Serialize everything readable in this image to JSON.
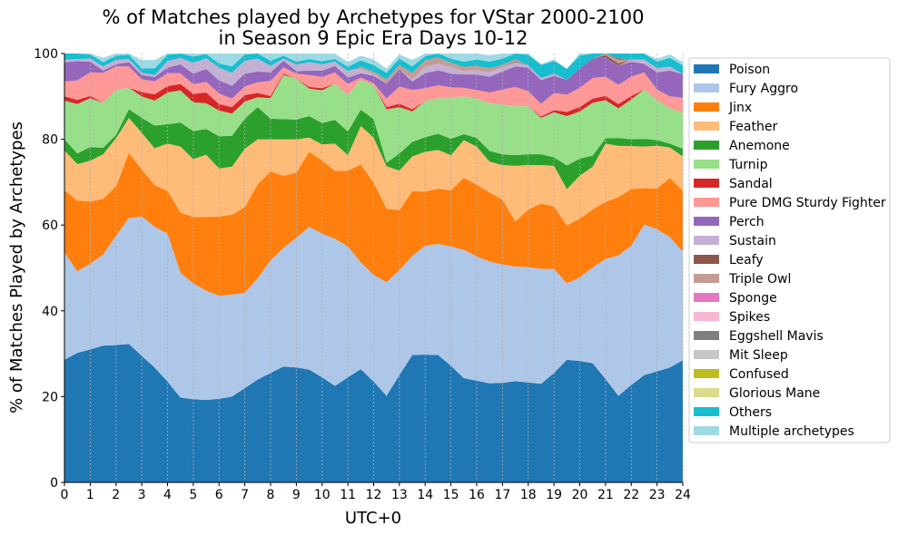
{
  "chart_data": {
    "type": "area",
    "stacked": true,
    "title": [
      "% of Matches played by Archetypes for VStar 2000-2100",
      "in Season 9 Epic Era Days 10-12"
    ],
    "xlabel": "UTC+0",
    "ylabel": "% of Matches Played by Archetypes",
    "xlim": [
      0,
      24
    ],
    "ylim": [
      0,
      100
    ],
    "x_ticks": [
      "0",
      "1",
      "2",
      "3",
      "4",
      "5",
      "6",
      "7",
      "8",
      "9",
      "10",
      "11",
      "12",
      "13",
      "14",
      "15",
      "16",
      "17",
      "18",
      "19",
      "20",
      "21",
      "22",
      "23",
      "24"
    ],
    "y_ticks": [
      "0",
      "20",
      "40",
      "60",
      "80",
      "100"
    ],
    "grid": "vertical-dotted",
    "legend_position": "right",
    "x": [
      0,
      0.5,
      1,
      1.5,
      2,
      2.5,
      3,
      3.5,
      4,
      4.5,
      5,
      5.5,
      6,
      6.5,
      7,
      7.5,
      8,
      8.5,
      9,
      9.5,
      10,
      10.5,
      11,
      11.5,
      12,
      12.5,
      13,
      13.5,
      14,
      14.5,
      15,
      15.5,
      16,
      16.5,
      17,
      17.5,
      18,
      18.5,
      19,
      19.5,
      20,
      20.5,
      21,
      21.5,
      22,
      22.5,
      23,
      23.5,
      24
    ],
    "series": [
      {
        "name": "Poison",
        "color": "#1f77b4",
        "values": [
          28.6,
          30.2,
          31,
          31.9,
          32,
          32.3,
          29.5,
          26.8,
          23.5,
          19.8,
          19.4,
          19.2,
          19.5,
          20,
          22,
          24,
          25.5,
          27,
          26.8,
          26.3,
          24.5,
          22.5,
          24.5,
          26.4,
          23.5,
          20.2,
          25,
          29.7,
          29.8,
          29.7,
          27.2,
          24.3,
          23.7,
          23.1,
          23.2,
          23.6,
          23.3,
          23,
          25.5,
          28.6,
          28.3,
          27.8,
          24.1,
          20.2,
          22.7,
          25,
          25.9,
          26.8,
          28.5
        ]
      },
      {
        "name": "Fury Aggro",
        "color": "#aec7e8",
        "values": [
          25,
          19,
          20,
          21.2,
          25.5,
          29.3,
          32.5,
          32.8,
          34.5,
          29.1,
          27,
          25.5,
          24,
          23.8,
          22.2,
          23.6,
          26.3,
          27.7,
          30.2,
          33.3,
          33.5,
          34.3,
          30.5,
          24.9,
          24.9,
          26.5,
          24.5,
          23.1,
          25.4,
          25.9,
          27.8,
          29.9,
          29,
          28.4,
          27.6,
          26.7,
          26.9,
          26.8,
          24.3,
          17.8,
          19.5,
          22.3,
          28,
          32.7,
          32.5,
          35.1,
          33.1,
          30.4,
          25.3
        ]
      },
      {
        "name": "Jinx",
        "color": "#ff7f0e",
        "values": [
          14.5,
          16.5,
          14.5,
          13,
          11.5,
          15.2,
          11,
          9.7,
          10,
          14,
          15.5,
          17.2,
          18.5,
          18.6,
          20,
          21.9,
          20.7,
          16.8,
          15.2,
          17.5,
          17,
          15.8,
          17.7,
          22.8,
          21.5,
          17.1,
          14,
          15.1,
          12.6,
          12.9,
          13.1,
          16.8,
          16.7,
          16.1,
          15.1,
          10.5,
          13.4,
          15.2,
          14.5,
          13.5,
          13.7,
          13.5,
          13.3,
          13.6,
          13.2,
          8.5,
          9.5,
          13.8,
          14.2
        ]
      },
      {
        "name": "Feather",
        "color": "#ffbb78",
        "values": [
          9.3,
          8.5,
          9.5,
          10.4,
          11.2,
          8.2,
          8.5,
          8.6,
          11,
          15.4,
          13.5,
          14.5,
          11.2,
          11.2,
          13.6,
          10.5,
          7.5,
          8.5,
          7.8,
          3.3,
          3.8,
          6.4,
          3.6,
          9,
          10.5,
          9.9,
          9.2,
          8.1,
          9.3,
          9,
          8.2,
          8.8,
          8.9,
          7.2,
          8.1,
          13,
          10.4,
          9,
          9.5,
          8.5,
          10,
          10,
          13.6,
          12,
          10,
          9.7,
          10,
          7.1,
          8
        ]
      },
      {
        "name": "Anemone",
        "color": "#2ca02c",
        "values": [
          2.6,
          2.5,
          3.2,
          1.5,
          0.8,
          2,
          3.5,
          5.3,
          4.5,
          5.6,
          6.5,
          6,
          7.5,
          7.2,
          7,
          7.5,
          4.8,
          4.7,
          4.6,
          5,
          5,
          5.5,
          5.5,
          3.8,
          4.3,
          0.8,
          4,
          3.4,
          3.4,
          3.8,
          3.8,
          1.4,
          2,
          2.5,
          2.5,
          2.5,
          2.5,
          2.5,
          2,
          5.5,
          4,
          2.6,
          1.2,
          1.8,
          1.6,
          1.8,
          1.3,
          0.9,
          1.8
        ]
      },
      {
        "name": "Turnip",
        "color": "#98df8a",
        "values": [
          9,
          11.5,
          11.4,
          10.5,
          10.5,
          5,
          5,
          5.8,
          7.4,
          7.5,
          6.7,
          6,
          6,
          5.2,
          4,
          2.3,
          4.8,
          10.3,
          9.5,
          6.4,
          7.6,
          8.5,
          8.5,
          7,
          7.9,
          12.5,
          10.8,
          7.1,
          8.4,
          8.3,
          9.5,
          8.8,
          9.2,
          11.1,
          11.6,
          11.4,
          11.2,
          8.5,
          10.5,
          11.5,
          11,
          12.3,
          8.9,
          6.9,
          9.3,
          11.5,
          9.3,
          8.3,
          8.4
        ]
      },
      {
        "name": "Sandal",
        "color": "#d62728",
        "values": [
          1,
          1,
          0.5,
          0,
          0,
          0,
          1,
          1.5,
          1.5,
          1.5,
          2,
          2.5,
          1.5,
          1.5,
          1.5,
          1,
          0.5,
          0.3,
          0,
          0.4,
          0.5,
          0,
          0,
          0,
          0,
          0.5,
          0.8,
          0.5,
          0,
          0,
          0,
          0,
          0,
          0,
          0,
          0,
          0,
          0.3,
          0.5,
          1,
          1,
          1,
          1,
          1,
          0.8,
          0,
          0,
          0,
          0
        ]
      },
      {
        "name": "Pure DMG Sturdy Fighter",
        "color": "#ff9896",
        "values": [
          3.5,
          4.5,
          5.5,
          7,
          5.5,
          5,
          3,
          3,
          3,
          2.5,
          2.2,
          2.5,
          2.5,
          2,
          2,
          2.5,
          3.5,
          1.5,
          1.2,
          2.8,
          2.6,
          2.6,
          2.6,
          0.5,
          0.5,
          2,
          4,
          4.5,
          3,
          3,
          2.5,
          2,
          2,
          2.5,
          3.5,
          4.5,
          3.5,
          3,
          4,
          4,
          4.5,
          4.8,
          4.5,
          4.5,
          4.5,
          4,
          2.5,
          2.7,
          3.5
        ]
      },
      {
        "name": "Perch",
        "color": "#9467bd",
        "values": [
          4.5,
          4.5,
          2.5,
          0.5,
          0.5,
          1,
          1,
          1,
          1.3,
          2.1,
          2.5,
          3,
          3,
          3,
          3,
          2.5,
          2,
          1.5,
          0.6,
          1,
          1.5,
          1.5,
          1.5,
          1,
          1.7,
          3.5,
          4,
          2,
          3.5,
          3.5,
          3.2,
          3.1,
          3.6,
          3.7,
          4.2,
          4.8,
          5.5,
          5.5,
          4,
          3.5,
          4.5,
          4.5,
          4.5,
          4.5,
          3.5,
          2,
          4,
          6,
          5.5
        ]
      },
      {
        "name": "Sustain",
        "color": "#c5b0d5",
        "values": [
          0.5,
          0.5,
          0.7,
          1,
          1,
          0.7,
          0.5,
          0.5,
          1.5,
          1.5,
          2.5,
          2.5,
          3,
          3,
          3,
          3,
          1.5,
          0.5,
          1.5,
          2,
          1.5,
          1,
          1.5,
          1,
          0.5,
          0,
          0,
          0.5,
          1.5,
          1.5,
          1.5,
          0.8,
          1,
          1,
          1,
          1,
          0.5,
          0.5,
          0.5,
          0,
          0,
          0,
          0,
          0,
          0.5,
          1,
          1,
          1,
          0
        ]
      },
      {
        "name": "Leafy",
        "color": "#8c564b",
        "values": [
          0,
          0,
          0,
          0,
          0,
          0,
          0,
          0,
          0,
          0,
          0,
          0,
          0,
          0,
          0,
          0,
          0,
          0,
          0,
          0,
          0,
          0,
          0,
          0,
          0,
          0,
          0,
          0,
          0,
          0,
          0,
          0,
          0,
          0,
          0,
          0.2,
          0,
          0,
          0,
          0,
          0,
          0,
          0.5,
          0.5,
          0,
          0,
          0,
          0,
          0
        ]
      },
      {
        "name": "Triple Owl",
        "color": "#c49c94",
        "values": [
          0,
          0,
          0,
          0,
          0,
          0,
          0,
          0,
          0,
          0,
          0,
          0,
          0,
          0,
          0,
          0,
          0,
          0,
          0,
          0,
          0,
          0,
          0,
          0.5,
          0.5,
          1,
          1,
          1.5,
          1.5,
          1.5,
          1,
          1,
          1,
          1,
          0.5,
          0.5,
          0,
          0,
          0,
          0,
          0,
          0,
          0.5,
          0.8,
          0,
          0,
          0,
          0,
          0
        ]
      },
      {
        "name": "Sponge",
        "color": "#e377c2",
        "values": [
          0,
          0,
          0,
          0,
          0,
          0,
          0,
          0,
          0,
          0,
          0,
          0,
          0,
          0,
          0,
          0,
          0,
          0,
          0,
          0,
          0,
          0,
          0,
          0,
          0,
          0,
          0,
          0,
          0,
          0,
          0,
          0,
          0,
          0,
          0,
          0,
          0,
          0,
          0,
          0,
          0,
          0,
          0,
          0,
          0,
          0,
          0,
          0,
          0
        ]
      },
      {
        "name": "Spikes",
        "color": "#f7b6d2",
        "values": [
          0,
          0,
          0,
          0,
          0,
          0,
          0,
          0,
          0,
          0,
          0,
          0,
          0,
          0,
          0,
          0,
          0,
          0,
          0,
          0,
          0,
          0,
          0,
          0,
          0,
          0,
          0,
          0,
          0,
          0,
          0,
          0,
          0,
          0,
          0,
          0,
          0,
          0,
          0,
          0,
          0,
          0,
          0,
          0,
          0,
          0,
          0,
          0,
          0
        ]
      },
      {
        "name": "Eggshell Mavis",
        "color": "#7f7f7f",
        "values": [
          0,
          0,
          0,
          0,
          0,
          0,
          0,
          0,
          0,
          0,
          0,
          0,
          0,
          0,
          0,
          0,
          0,
          0,
          0,
          0,
          0,
          0,
          0,
          0,
          0,
          0,
          0,
          0,
          0,
          0,
          0,
          0,
          0,
          0,
          0,
          0,
          0,
          0,
          0,
          0,
          0,
          0,
          0.5,
          0.5,
          0,
          0,
          0,
          0,
          0
        ]
      },
      {
        "name": "Mit Sleep",
        "color": "#c7c7c7",
        "values": [
          0,
          0,
          0,
          0,
          0,
          0,
          0,
          0,
          0,
          0,
          0,
          0,
          0,
          0,
          0,
          0,
          0,
          0,
          0,
          0,
          0,
          0,
          0,
          0,
          0,
          0,
          0,
          0,
          0,
          0,
          0,
          0,
          0,
          0,
          0,
          0,
          0,
          0,
          0,
          0,
          0,
          0,
          0,
          0,
          0,
          0,
          0,
          0,
          0
        ]
      },
      {
        "name": "Confused",
        "color": "#bcbd22",
        "values": [
          0,
          0,
          0,
          0,
          0,
          0,
          0,
          0,
          0,
          0,
          0,
          0,
          0,
          0,
          0,
          0,
          0,
          0,
          0,
          0,
          0,
          0,
          0,
          0,
          0,
          0,
          0,
          0,
          0,
          0,
          0,
          0,
          0,
          0,
          0,
          0,
          0,
          0,
          0,
          0,
          0,
          0,
          0,
          0,
          0,
          0,
          0,
          0,
          0
        ]
      },
      {
        "name": "Glorious Mane",
        "color": "#dbdb8d",
        "values": [
          0,
          0,
          0,
          0,
          0,
          0,
          0,
          0,
          0,
          0,
          0,
          0,
          0,
          0,
          0,
          0,
          0,
          0,
          0,
          0,
          0,
          0,
          0,
          0,
          0,
          0,
          0,
          0,
          0,
          0,
          0,
          0,
          0,
          0,
          0,
          0,
          0,
          0,
          0,
          0,
          0,
          0,
          0,
          0,
          0,
          0,
          0,
          0,
          0
        ]
      },
      {
        "name": "Others",
        "color": "#17becf",
        "values": [
          1.5,
          1.5,
          1,
          1,
          1,
          1,
          1,
          1.5,
          1.5,
          1.5,
          1.5,
          1,
          1,
          1.5,
          1.5,
          1.5,
          1.2,
          0.7,
          0.7,
          0.7,
          0.7,
          0.6,
          1,
          1.5,
          1.5,
          1.5,
          1.5,
          1.5,
          1,
          1,
          1,
          1.2,
          1.5,
          1.5,
          1.5,
          1.5,
          2.5,
          3,
          3,
          2.5,
          3,
          2,
          1.5,
          1.5,
          1.5,
          1.5,
          1.5,
          2,
          2
        ]
      },
      {
        "name": "Multiple archetypes",
        "color": "#9edae5",
        "values": [
          1,
          1,
          1,
          1,
          1,
          1.3,
          2,
          2,
          1.3,
          0.5,
          0.7,
          0.6,
          2.3,
          3,
          3,
          1.7,
          1.7,
          1.5,
          1.9,
          1.3,
          1.8,
          1.3,
          1.1,
          1.1,
          1.3,
          1,
          1,
          1.5,
          1.5,
          1.5,
          1.5,
          2,
          1.5,
          1.5,
          1.7,
          0.3,
          0.3,
          0.3,
          0.3,
          0.1,
          0.5,
          0.2,
          0,
          0,
          0.7,
          0.4,
          0.7,
          0.8,
          0.8
        ]
      }
    ]
  }
}
